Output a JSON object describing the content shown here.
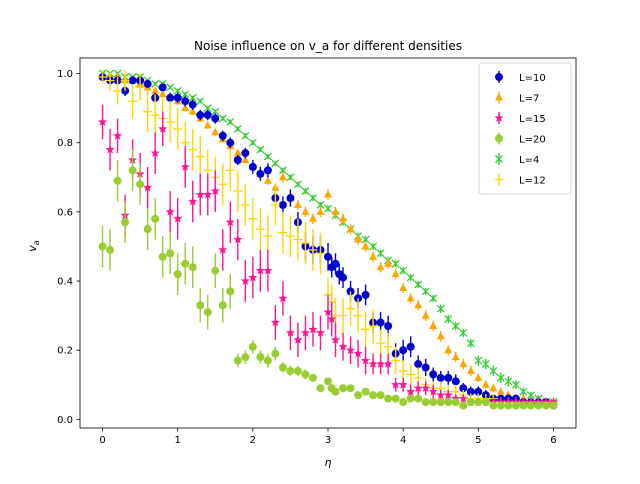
{
  "chart_data": {
    "type": "scatter",
    "title": "Noise influence on v_a for different densities",
    "xlabel": "η",
    "ylabel": "v",
    "ylabel_sub": "a",
    "xlim": [
      -0.3,
      6.3
    ],
    "ylim": [
      -0.025,
      1.045
    ],
    "x_ticks": [
      0,
      1,
      2,
      3,
      4,
      5,
      6
    ],
    "x_tick_labels": [
      "0",
      "1",
      "2",
      "3",
      "4",
      "5",
      "6"
    ],
    "y_ticks": [
      0.0,
      0.2,
      0.4,
      0.6,
      0.8,
      1.0
    ],
    "y_tick_labels": [
      "0.0",
      "0.2",
      "0.4",
      "0.6",
      "0.8",
      "1.0"
    ],
    "grid": false,
    "legend_position": "top-right",
    "series": [
      {
        "name": "L=4",
        "color": "#32cd32",
        "marker": "x",
        "x": [
          0.0,
          0.1,
          0.2,
          0.3,
          0.4,
          0.5,
          0.6,
          0.7,
          0.8,
          0.9,
          1.0,
          1.1,
          1.2,
          1.3,
          1.4,
          1.5,
          1.6,
          1.7,
          1.8,
          1.9,
          2.0,
          2.1,
          2.2,
          2.3,
          2.4,
          2.5,
          2.6,
          2.7,
          2.8,
          2.9,
          3.0,
          3.1,
          3.2,
          3.3,
          3.4,
          3.5,
          3.6,
          3.7,
          3.8,
          3.9,
          4.0,
          4.1,
          4.2,
          4.3,
          4.4,
          4.5,
          4.6,
          4.7,
          4.8,
          4.9,
          5.0,
          5.1,
          5.2,
          5.3,
          5.4,
          5.5,
          5.6,
          5.7,
          5.8,
          5.9,
          6.0
        ],
        "y": [
          1.0,
          1.0,
          1.0,
          0.99,
          0.99,
          0.99,
          0.98,
          0.97,
          0.97,
          0.96,
          0.95,
          0.94,
          0.93,
          0.92,
          0.9,
          0.89,
          0.87,
          0.86,
          0.84,
          0.82,
          0.8,
          0.78,
          0.76,
          0.74,
          0.72,
          0.7,
          0.68,
          0.66,
          0.64,
          0.62,
          0.61,
          0.59,
          0.57,
          0.55,
          0.53,
          0.52,
          0.5,
          0.48,
          0.46,
          0.45,
          0.43,
          0.41,
          0.39,
          0.37,
          0.35,
          0.32,
          0.29,
          0.27,
          0.25,
          0.22,
          0.17,
          0.16,
          0.14,
          0.12,
          0.11,
          0.1,
          0.08,
          0.07,
          0.06,
          0.05,
          0.05
        ],
        "err": [
          0.005,
          0.005,
          0.005,
          0.005,
          0.005,
          0.005,
          0.005,
          0.005,
          0.005,
          0.005,
          0.006,
          0.006,
          0.006,
          0.006,
          0.006,
          0.006,
          0.006,
          0.007,
          0.007,
          0.007,
          0.007,
          0.007,
          0.008,
          0.008,
          0.008,
          0.008,
          0.008,
          0.009,
          0.009,
          0.009,
          0.01,
          0.01,
          0.01,
          0.01,
          0.01,
          0.01,
          0.01,
          0.01,
          0.01,
          0.01,
          0.01,
          0.01,
          0.01,
          0.01,
          0.01,
          0.012,
          0.012,
          0.012,
          0.012,
          0.012,
          0.015,
          0.015,
          0.015,
          0.015,
          0.015,
          0.012,
          0.012,
          0.01,
          0.01,
          0.01,
          0.01
        ]
      },
      {
        "name": "L=7",
        "color": "#ffa500",
        "marker": "^",
        "x": [
          0.0,
          0.1,
          0.2,
          0.3,
          0.4,
          0.5,
          0.6,
          0.7,
          0.8,
          0.9,
          1.0,
          1.1,
          1.2,
          1.3,
          1.4,
          1.5,
          1.6,
          1.7,
          1.8,
          1.9,
          2.0,
          2.1,
          2.2,
          2.3,
          2.4,
          2.5,
          2.6,
          2.7,
          2.8,
          2.9,
          3.0,
          3.1,
          3.2,
          3.3,
          3.4,
          3.5,
          3.6,
          3.7,
          3.8,
          3.9,
          4.0,
          4.1,
          4.2,
          4.3,
          4.4,
          4.5,
          4.6,
          4.7,
          4.8,
          4.9,
          5.0,
          5.1,
          5.2,
          5.3,
          5.4,
          5.5,
          5.6,
          5.7,
          5.8,
          5.9,
          6.0
        ],
        "y": [
          0.99,
          0.99,
          0.99,
          0.98,
          0.98,
          0.97,
          0.96,
          0.95,
          0.94,
          0.93,
          0.92,
          0.9,
          0.89,
          0.87,
          0.85,
          0.83,
          0.81,
          0.79,
          0.77,
          0.75,
          0.73,
          0.71,
          0.69,
          0.67,
          0.7,
          0.64,
          0.62,
          0.6,
          0.58,
          0.6,
          0.65,
          0.6,
          0.58,
          0.55,
          0.52,
          0.5,
          0.47,
          0.44,
          0.45,
          0.42,
          0.38,
          0.35,
          0.33,
          0.3,
          0.27,
          0.24,
          0.2,
          0.18,
          0.16,
          0.14,
          0.12,
          0.1,
          0.09,
          0.08,
          0.07,
          0.06,
          0.06,
          0.05,
          0.05,
          0.05,
          0.05
        ],
        "err": [
          0.008,
          0.008,
          0.008,
          0.008,
          0.008,
          0.008,
          0.008,
          0.008,
          0.008,
          0.008,
          0.01,
          0.01,
          0.01,
          0.01,
          0.01,
          0.01,
          0.01,
          0.01,
          0.01,
          0.01,
          0.012,
          0.012,
          0.012,
          0.012,
          0.015,
          0.015,
          0.015,
          0.015,
          0.015,
          0.015,
          0.015,
          0.015,
          0.015,
          0.015,
          0.015,
          0.015,
          0.015,
          0.015,
          0.015,
          0.015,
          0.015,
          0.015,
          0.015,
          0.015,
          0.015,
          0.015,
          0.015,
          0.015,
          0.015,
          0.015,
          0.012,
          0.012,
          0.012,
          0.01,
          0.01,
          0.01,
          0.01,
          0.01,
          0.01,
          0.01,
          0.01
        ]
      },
      {
        "name": "L=10",
        "color": "#0000cd",
        "marker": "o",
        "x": [
          0.0,
          0.1,
          0.2,
          0.3,
          0.4,
          0.5,
          0.6,
          0.7,
          0.8,
          0.9,
          1.0,
          1.1,
          1.2,
          1.3,
          1.4,
          1.5,
          1.6,
          1.7,
          1.8,
          1.9,
          2.0,
          2.1,
          2.2,
          2.3,
          2.4,
          2.5,
          2.6,
          2.7,
          2.8,
          2.9,
          3.0,
          3.05,
          3.1,
          3.15,
          3.2,
          3.3,
          3.4,
          3.5,
          3.6,
          3.7,
          3.8,
          3.9,
          4.0,
          4.1,
          4.2,
          4.3,
          4.4,
          4.5,
          4.6,
          4.7,
          4.8,
          4.9,
          5.0,
          5.1,
          5.2,
          5.3,
          5.4,
          5.5,
          5.6,
          5.7,
          5.8,
          5.9,
          6.0
        ],
        "y": [
          0.99,
          0.98,
          0.98,
          0.95,
          0.98,
          0.98,
          0.97,
          0.93,
          0.96,
          0.93,
          0.93,
          0.92,
          0.91,
          0.88,
          0.88,
          0.87,
          0.82,
          0.8,
          0.75,
          0.77,
          0.73,
          0.71,
          0.72,
          0.64,
          0.62,
          0.64,
          0.57,
          0.5,
          0.49,
          0.49,
          0.47,
          0.44,
          0.45,
          0.42,
          0.41,
          0.37,
          0.35,
          0.36,
          0.28,
          0.28,
          0.27,
          0.19,
          0.2,
          0.21,
          0.16,
          0.15,
          0.13,
          0.12,
          0.12,
          0.11,
          0.09,
          0.08,
          0.08,
          0.07,
          0.06,
          0.06,
          0.06,
          0.06,
          0.05,
          0.05,
          0.05,
          0.05,
          0.04
        ],
        "err": [
          0.01,
          0.01,
          0.01,
          0.015,
          0.01,
          0.01,
          0.01,
          0.015,
          0.01,
          0.015,
          0.015,
          0.015,
          0.015,
          0.015,
          0.015,
          0.015,
          0.015,
          0.015,
          0.015,
          0.015,
          0.02,
          0.02,
          0.02,
          0.025,
          0.025,
          0.025,
          0.03,
          0.04,
          0.04,
          0.04,
          0.04,
          0.03,
          0.03,
          0.03,
          0.03,
          0.03,
          0.03,
          0.03,
          0.03,
          0.03,
          0.03,
          0.03,
          0.03,
          0.03,
          0.025,
          0.025,
          0.02,
          0.02,
          0.02,
          0.02,
          0.015,
          0.015,
          0.015,
          0.015,
          0.01,
          0.01,
          0.01,
          0.01,
          0.01,
          0.01,
          0.01,
          0.01,
          0.01
        ]
      },
      {
        "name": "L=12",
        "color": "#ffd700",
        "marker": "+",
        "x": [
          0.0,
          0.1,
          0.2,
          0.3,
          0.4,
          0.5,
          0.6,
          0.7,
          0.8,
          0.9,
          1.0,
          1.1,
          1.2,
          1.3,
          1.4,
          1.5,
          1.6,
          1.7,
          1.8,
          1.9,
          2.0,
          2.1,
          2.2,
          2.3,
          2.4,
          2.5,
          2.6,
          2.7,
          2.8,
          2.9,
          3.0,
          3.05,
          3.1,
          3.2,
          3.3,
          3.4,
          3.5,
          3.6,
          3.7,
          3.8,
          3.9,
          4.0,
          4.1,
          4.2,
          4.3,
          4.4,
          4.5,
          4.6,
          4.7,
          4.8,
          4.9,
          5.0,
          5.1,
          5.2,
          5.3,
          5.4,
          5.5,
          5.6,
          5.7,
          5.8,
          5.9,
          6.0
        ],
        "y": [
          0.99,
          0.98,
          0.95,
          0.98,
          0.92,
          0.96,
          0.89,
          0.88,
          0.87,
          0.86,
          0.84,
          0.8,
          0.78,
          0.76,
          0.72,
          0.7,
          0.68,
          0.72,
          0.66,
          0.62,
          0.58,
          0.55,
          0.53,
          0.62,
          0.54,
          0.53,
          0.52,
          0.51,
          0.49,
          0.48,
          0.36,
          0.34,
          0.3,
          0.3,
          0.32,
          0.3,
          0.26,
          0.27,
          0.22,
          0.21,
          0.17,
          0.14,
          0.13,
          0.12,
          0.1,
          0.09,
          0.09,
          0.08,
          0.08,
          0.07,
          0.06,
          0.06,
          0.06,
          0.06,
          0.05,
          0.05,
          0.05,
          0.05,
          0.05,
          0.05,
          0.05,
          0.05
        ],
        "err": [
          0.02,
          0.03,
          0.04,
          0.03,
          0.05,
          0.04,
          0.06,
          0.06,
          0.06,
          0.06,
          0.06,
          0.06,
          0.06,
          0.06,
          0.06,
          0.06,
          0.06,
          0.06,
          0.06,
          0.06,
          0.06,
          0.06,
          0.06,
          0.06,
          0.06,
          0.06,
          0.06,
          0.06,
          0.06,
          0.06,
          0.05,
          0.05,
          0.05,
          0.05,
          0.05,
          0.05,
          0.05,
          0.05,
          0.04,
          0.04,
          0.04,
          0.03,
          0.03,
          0.03,
          0.02,
          0.02,
          0.02,
          0.02,
          0.02,
          0.015,
          0.015,
          0.015,
          0.01,
          0.01,
          0.01,
          0.01,
          0.01,
          0.01,
          0.01,
          0.01,
          0.01,
          0.01
        ]
      },
      {
        "name": "L=15",
        "color": "#ff1493",
        "marker": "*",
        "x": [
          0.0,
          0.1,
          0.2,
          0.3,
          0.4,
          0.5,
          0.6,
          0.7,
          0.8,
          0.9,
          1.0,
          1.1,
          1.2,
          1.3,
          1.4,
          1.5,
          1.6,
          1.7,
          1.8,
          1.9,
          2.0,
          2.1,
          2.2,
          2.3,
          2.4,
          2.5,
          2.6,
          2.7,
          2.8,
          2.9,
          3.0,
          3.05,
          3.1,
          3.2,
          3.3,
          3.4,
          3.5,
          3.6,
          3.7,
          3.8,
          3.9,
          4.0,
          4.1,
          4.2,
          4.3,
          4.4,
          4.5,
          4.6,
          4.7,
          4.8,
          4.9,
          5.0,
          5.1,
          5.2,
          5.3,
          5.4,
          5.5,
          5.6,
          5.7,
          5.8,
          5.9,
          6.0
        ],
        "y": [
          0.86,
          0.78,
          0.82,
          0.59,
          0.75,
          0.71,
          0.67,
          0.77,
          0.84,
          0.6,
          0.58,
          0.73,
          0.63,
          0.65,
          0.65,
          0.66,
          0.49,
          0.57,
          0.52,
          0.4,
          0.41,
          0.43,
          0.43,
          0.28,
          0.35,
          0.25,
          0.23,
          0.25,
          0.26,
          0.25,
          0.31,
          0.29,
          0.23,
          0.21,
          0.2,
          0.19,
          0.17,
          0.16,
          0.16,
          0.16,
          0.1,
          0.1,
          0.08,
          0.09,
          0.09,
          0.08,
          0.07,
          0.07,
          0.06,
          0.06,
          0.05,
          0.05,
          0.05,
          0.05,
          0.05,
          0.05,
          0.05,
          0.05,
          0.05,
          0.05,
          0.05,
          0.05
        ],
        "err": [
          0.05,
          0.06,
          0.05,
          0.06,
          0.06,
          0.06,
          0.06,
          0.06,
          0.05,
          0.06,
          0.06,
          0.06,
          0.06,
          0.06,
          0.06,
          0.06,
          0.06,
          0.06,
          0.06,
          0.06,
          0.06,
          0.06,
          0.06,
          0.05,
          0.05,
          0.05,
          0.05,
          0.05,
          0.05,
          0.05,
          0.05,
          0.05,
          0.05,
          0.04,
          0.04,
          0.04,
          0.04,
          0.03,
          0.03,
          0.03,
          0.02,
          0.02,
          0.02,
          0.02,
          0.02,
          0.02,
          0.015,
          0.015,
          0.01,
          0.01,
          0.01,
          0.01,
          0.01,
          0.01,
          0.01,
          0.01,
          0.01,
          0.01,
          0.01,
          0.01,
          0.01,
          0.01
        ]
      },
      {
        "name": "L=20",
        "color": "#9acd32",
        "marker": "o",
        "x": [
          0.0,
          0.1,
          0.2,
          0.3,
          0.4,
          0.5,
          0.6,
          0.7,
          0.8,
          0.9,
          1.0,
          1.1,
          1.2,
          1.3,
          1.4,
          1.5,
          1.6,
          1.7,
          1.8,
          1.9,
          2.0,
          2.1,
          2.2,
          2.3,
          2.4,
          2.5,
          2.6,
          2.7,
          2.8,
          2.9,
          3.0,
          3.05,
          3.1,
          3.2,
          3.3,
          3.4,
          3.5,
          3.6,
          3.7,
          3.8,
          3.9,
          4.0,
          4.1,
          4.2,
          4.3,
          4.4,
          4.5,
          4.6,
          4.7,
          4.8,
          4.9,
          5.0,
          5.1,
          5.2,
          5.3,
          5.4,
          5.5,
          5.6,
          5.7,
          5.8,
          5.9,
          6.0
        ],
        "y": [
          0.5,
          0.49,
          0.69,
          0.57,
          0.72,
          0.68,
          0.55,
          0.58,
          0.47,
          0.48,
          0.42,
          0.45,
          0.44,
          0.33,
          0.31,
          0.43,
          0.33,
          0.37,
          0.17,
          0.18,
          0.21,
          0.18,
          0.17,
          0.19,
          0.15,
          0.14,
          0.14,
          0.13,
          0.12,
          0.09,
          0.11,
          0.09,
          0.08,
          0.09,
          0.09,
          0.07,
          0.08,
          0.07,
          0.07,
          0.06,
          0.06,
          0.05,
          0.06,
          0.06,
          0.05,
          0.05,
          0.05,
          0.05,
          0.05,
          0.04,
          0.05,
          0.05,
          0.05,
          0.04,
          0.04,
          0.04,
          0.04,
          0.04,
          0.04,
          0.04,
          0.04,
          0.04
        ],
        "err": [
          0.06,
          0.06,
          0.06,
          0.06,
          0.06,
          0.06,
          0.06,
          0.06,
          0.06,
          0.06,
          0.06,
          0.06,
          0.06,
          0.05,
          0.05,
          0.05,
          0.05,
          0.05,
          0.02,
          0.02,
          0.02,
          0.02,
          0.02,
          0.02,
          0.015,
          0.015,
          0.015,
          0.015,
          0.01,
          0.01,
          0.01,
          0.01,
          0.01,
          0.01,
          0.01,
          0.01,
          0.01,
          0.01,
          0.01,
          0.01,
          0.01,
          0.01,
          0.01,
          0.01,
          0.01,
          0.01,
          0.01,
          0.01,
          0.01,
          0.01,
          0.01,
          0.01,
          0.01,
          0.01,
          0.01,
          0.01,
          0.01,
          0.01,
          0.01,
          0.01,
          0.01,
          0.01
        ]
      }
    ],
    "legend_entries": [
      {
        "label": "L=10",
        "color": "#0000cd",
        "marker": "o"
      },
      {
        "label": "L=7",
        "color": "#ffa500",
        "marker": "^"
      },
      {
        "label": "L=15",
        "color": "#ff1493",
        "marker": "*"
      },
      {
        "label": "L=20",
        "color": "#9acd32",
        "marker": "o"
      },
      {
        "label": "L=4",
        "color": "#32cd32",
        "marker": "x"
      },
      {
        "label": "L=12",
        "color": "#ffd700",
        "marker": "+"
      }
    ]
  }
}
